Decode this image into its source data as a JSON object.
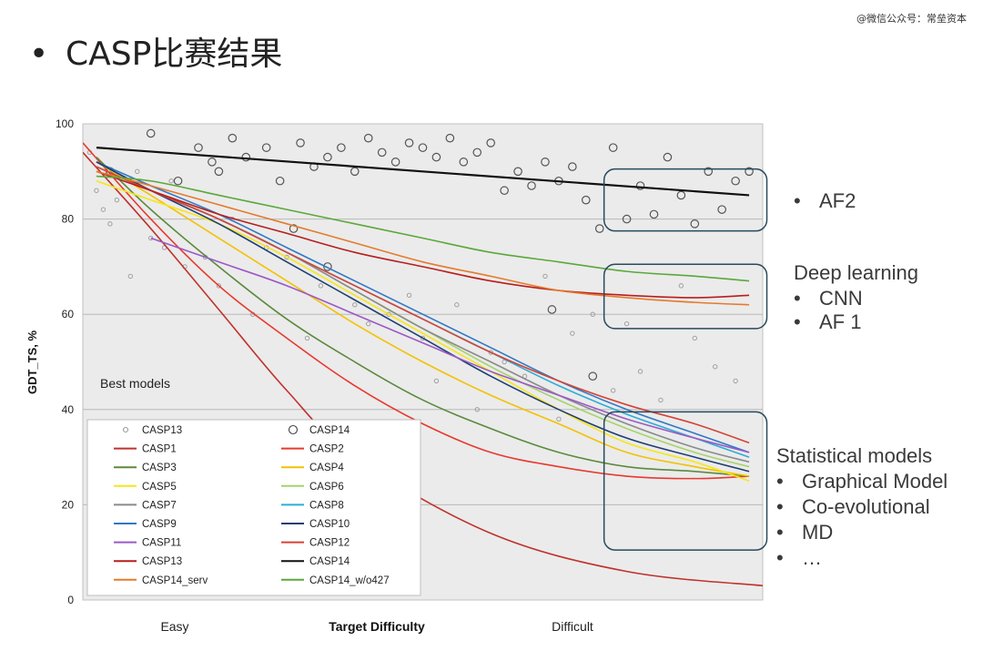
{
  "watermark": "@微信公众号：常垒资本",
  "slide_title": "CASP比赛结果",
  "annotations": {
    "af2_group": [
      "AF2"
    ],
    "deep_learning_heading": "Deep learning",
    "deep_learning_items": [
      "CNN",
      "AF 1"
    ],
    "statistical_heading": "Statistical models",
    "statistical_items": [
      "Graphical Model",
      "Co-evolutional",
      "MD",
      "…"
    ]
  },
  "chart_data": {
    "type": "line",
    "ylabel": "GDT_TS, %",
    "xlabel": "Target Difficulty",
    "x_tick_labels": [
      "Easy",
      "Difficult"
    ],
    "ylim": [
      0,
      100
    ],
    "xlim": [
      0,
      1
    ],
    "y_ticks": [
      0,
      20,
      40,
      60,
      80,
      100
    ],
    "grid": true,
    "inner_label": "Best models",
    "legend_position": "bottom-left",
    "scatter_series": [
      {
        "name": "CASP13",
        "marker": "small-circle",
        "points": [
          [
            0.01,
            94
          ],
          [
            0.02,
            86
          ],
          [
            0.03,
            82
          ],
          [
            0.04,
            79
          ],
          [
            0.05,
            84
          ],
          [
            0.07,
            68
          ],
          [
            0.08,
            90
          ],
          [
            0.1,
            76
          ],
          [
            0.12,
            74
          ],
          [
            0.13,
            88
          ],
          [
            0.15,
            70
          ],
          [
            0.18,
            72
          ],
          [
            0.2,
            66
          ],
          [
            0.22,
            80
          ],
          [
            0.25,
            60
          ],
          [
            0.27,
            74
          ],
          [
            0.3,
            72
          ],
          [
            0.33,
            55
          ],
          [
            0.35,
            66
          ],
          [
            0.4,
            62
          ],
          [
            0.42,
            58
          ],
          [
            0.45,
            60
          ],
          [
            0.48,
            64
          ],
          [
            0.5,
            55
          ],
          [
            0.52,
            46
          ],
          [
            0.55,
            62
          ],
          [
            0.58,
            40
          ],
          [
            0.6,
            52
          ],
          [
            0.62,
            50
          ],
          [
            0.65,
            47
          ],
          [
            0.68,
            68
          ],
          [
            0.7,
            38
          ],
          [
            0.72,
            56
          ],
          [
            0.75,
            60
          ],
          [
            0.78,
            44
          ],
          [
            0.8,
            58
          ],
          [
            0.82,
            48
          ],
          [
            0.85,
            42
          ],
          [
            0.88,
            66
          ],
          [
            0.9,
            55
          ],
          [
            0.93,
            49
          ],
          [
            0.96,
            46
          ]
        ]
      },
      {
        "name": "CASP14",
        "marker": "large-circle",
        "points": [
          [
            0.04,
            90
          ],
          [
            0.1,
            98
          ],
          [
            0.14,
            88
          ],
          [
            0.17,
            95
          ],
          [
            0.19,
            92
          ],
          [
            0.2,
            90
          ],
          [
            0.22,
            97
          ],
          [
            0.24,
            93
          ],
          [
            0.27,
            95
          ],
          [
            0.29,
            88
          ],
          [
            0.32,
            96
          ],
          [
            0.34,
            91
          ],
          [
            0.36,
            93
          ],
          [
            0.38,
            95
          ],
          [
            0.4,
            90
          ],
          [
            0.42,
            97
          ],
          [
            0.44,
            94
          ],
          [
            0.46,
            92
          ],
          [
            0.48,
            96
          ],
          [
            0.5,
            95
          ],
          [
            0.52,
            93
          ],
          [
            0.54,
            97
          ],
          [
            0.56,
            92
          ],
          [
            0.58,
            94
          ],
          [
            0.6,
            96
          ],
          [
            0.62,
            86
          ],
          [
            0.64,
            90
          ],
          [
            0.66,
            87
          ],
          [
            0.68,
            92
          ],
          [
            0.7,
            88
          ],
          [
            0.72,
            91
          ],
          [
            0.74,
            84
          ],
          [
            0.76,
            78
          ],
          [
            0.78,
            95
          ],
          [
            0.8,
            80
          ],
          [
            0.82,
            87
          ],
          [
            0.84,
            81
          ],
          [
            0.86,
            93
          ],
          [
            0.88,
            85
          ],
          [
            0.9,
            79
          ],
          [
            0.92,
            90
          ],
          [
            0.94,
            82
          ],
          [
            0.96,
            88
          ],
          [
            0.98,
            90
          ],
          [
            0.36,
            70
          ],
          [
            0.31,
            78
          ],
          [
            0.75,
            47
          ],
          [
            0.69,
            61
          ]
        ]
      }
    ],
    "series": [
      {
        "name": "CASP1",
        "color": "#c0312c",
        "points": [
          [
            0.0,
            94
          ],
          [
            0.1,
            78
          ],
          [
            0.2,
            61
          ],
          [
            0.3,
            44
          ],
          [
            0.4,
            30
          ],
          [
            0.6,
            14
          ],
          [
            0.8,
            6
          ],
          [
            1.0,
            3
          ]
        ],
        "visible_range": [
          0.0,
          0.44
        ]
      },
      {
        "name": "CASP2",
        "color": "#e8392f",
        "points": [
          [
            0.0,
            96
          ],
          [
            0.1,
            80
          ],
          [
            0.2,
            66
          ],
          [
            0.3,
            55
          ],
          [
            0.4,
            45
          ],
          [
            0.5,
            37
          ],
          [
            0.6,
            31
          ],
          [
            0.7,
            28
          ],
          [
            0.8,
            26
          ],
          [
            0.9,
            25.5
          ],
          [
            0.98,
            26
          ]
        ]
      },
      {
        "name": "CASP3",
        "color": "#5b8a3c",
        "points": [
          [
            0.02,
            93
          ],
          [
            0.1,
            82
          ],
          [
            0.2,
            70
          ],
          [
            0.3,
            59
          ],
          [
            0.4,
            50
          ],
          [
            0.5,
            42
          ],
          [
            0.6,
            36
          ],
          [
            0.7,
            31
          ],
          [
            0.8,
            28
          ],
          [
            0.9,
            27
          ],
          [
            0.98,
            26
          ]
        ]
      },
      {
        "name": "CASP4",
        "color": "#f2c200",
        "points": [
          [
            0.02,
            92
          ],
          [
            0.1,
            85
          ],
          [
            0.2,
            76
          ],
          [
            0.3,
            67
          ],
          [
            0.4,
            58
          ],
          [
            0.5,
            50
          ],
          [
            0.6,
            43
          ],
          [
            0.7,
            37
          ],
          [
            0.8,
            31
          ],
          [
            0.9,
            28
          ],
          [
            0.98,
            26
          ]
        ]
      },
      {
        "name": "CASP5",
        "color": "#f5e619",
        "points": [
          [
            0.02,
            88
          ],
          [
            0.1,
            84
          ],
          [
            0.2,
            79
          ],
          [
            0.3,
            72
          ],
          [
            0.4,
            64
          ],
          [
            0.5,
            56
          ],
          [
            0.6,
            48
          ],
          [
            0.7,
            40
          ],
          [
            0.8,
            33
          ],
          [
            0.9,
            29
          ],
          [
            0.98,
            25
          ]
        ]
      },
      {
        "name": "CASP6",
        "color": "#a5d46a",
        "points": [
          [
            0.02,
            90
          ],
          [
            0.1,
            86
          ],
          [
            0.2,
            80
          ],
          [
            0.3,
            73
          ],
          [
            0.4,
            65
          ],
          [
            0.5,
            57
          ],
          [
            0.6,
            49
          ],
          [
            0.7,
            42
          ],
          [
            0.8,
            36
          ],
          [
            0.9,
            31
          ],
          [
            0.98,
            28
          ]
        ]
      },
      {
        "name": "CASP7",
        "color": "#8a8a8a",
        "points": [
          [
            0.02,
            92
          ],
          [
            0.1,
            86
          ],
          [
            0.2,
            80
          ],
          [
            0.3,
            73
          ],
          [
            0.4,
            65
          ],
          [
            0.5,
            57
          ],
          [
            0.6,
            50
          ],
          [
            0.7,
            43
          ],
          [
            0.8,
            37
          ],
          [
            0.9,
            32
          ],
          [
            0.98,
            29
          ]
        ]
      },
      {
        "name": "CASP8",
        "color": "#2aaed6",
        "points": [
          [
            0.02,
            91
          ],
          [
            0.1,
            86
          ],
          [
            0.2,
            80
          ],
          [
            0.3,
            73
          ],
          [
            0.4,
            66
          ],
          [
            0.5,
            59
          ],
          [
            0.6,
            52
          ],
          [
            0.7,
            45
          ],
          [
            0.8,
            39
          ],
          [
            0.9,
            34
          ],
          [
            0.98,
            30
          ]
        ]
      },
      {
        "name": "CASP9",
        "color": "#2f78c4",
        "points": [
          [
            0.02,
            92
          ],
          [
            0.1,
            87
          ],
          [
            0.2,
            81
          ],
          [
            0.3,
            74
          ],
          [
            0.4,
            67
          ],
          [
            0.5,
            60
          ],
          [
            0.6,
            53
          ],
          [
            0.7,
            46
          ],
          [
            0.8,
            40
          ],
          [
            0.9,
            35
          ],
          [
            0.98,
            31
          ]
        ]
      },
      {
        "name": "CASP10",
        "color": "#1f3d73",
        "points": [
          [
            0.02,
            92
          ],
          [
            0.1,
            86
          ],
          [
            0.2,
            79
          ],
          [
            0.3,
            71
          ],
          [
            0.4,
            63
          ],
          [
            0.5,
            55
          ],
          [
            0.6,
            47
          ],
          [
            0.7,
            40
          ],
          [
            0.8,
            34
          ],
          [
            0.9,
            30
          ],
          [
            0.98,
            27
          ]
        ]
      },
      {
        "name": "CASP11",
        "color": "#9b59c6",
        "points": [
          [
            0.1,
            76
          ],
          [
            0.2,
            71
          ],
          [
            0.3,
            66
          ],
          [
            0.4,
            60
          ],
          [
            0.5,
            54
          ],
          [
            0.6,
            48
          ],
          [
            0.7,
            43
          ],
          [
            0.8,
            38
          ],
          [
            0.9,
            34
          ],
          [
            0.98,
            31
          ]
        ]
      },
      {
        "name": "CASP12",
        "color": "#d64236",
        "points": [
          [
            0.02,
            91
          ],
          [
            0.1,
            86
          ],
          [
            0.2,
            80
          ],
          [
            0.3,
            73
          ],
          [
            0.4,
            66
          ],
          [
            0.5,
            59
          ],
          [
            0.6,
            52
          ],
          [
            0.7,
            46
          ],
          [
            0.8,
            41
          ],
          [
            0.9,
            37
          ],
          [
            0.98,
            33
          ]
        ]
      },
      {
        "name": "CASP13",
        "color": "#b81d1d",
        "points": [
          [
            0.02,
            90
          ],
          [
            0.1,
            86
          ],
          [
            0.2,
            81
          ],
          [
            0.3,
            77
          ],
          [
            0.4,
            73
          ],
          [
            0.5,
            70
          ],
          [
            0.6,
            67
          ],
          [
            0.7,
            65
          ],
          [
            0.8,
            64
          ],
          [
            0.9,
            63.5
          ],
          [
            0.98,
            64
          ]
        ]
      },
      {
        "name": "CASP14",
        "color": "#111111",
        "points": [
          [
            0.02,
            95
          ],
          [
            0.98,
            85
          ]
        ]
      },
      {
        "name": "CASP14_serv",
        "color": "#e67a2c",
        "points": [
          [
            0.02,
            90
          ],
          [
            0.1,
            87
          ],
          [
            0.2,
            83
          ],
          [
            0.3,
            79
          ],
          [
            0.4,
            75
          ],
          [
            0.5,
            71
          ],
          [
            0.6,
            68
          ],
          [
            0.7,
            65
          ],
          [
            0.8,
            63.5
          ],
          [
            0.9,
            62.5
          ],
          [
            0.98,
            62
          ]
        ]
      },
      {
        "name": "CASP14_w/o427",
        "color": "#5aa83a",
        "points": [
          [
            0.02,
            89
          ],
          [
            0.1,
            88
          ],
          [
            0.2,
            85
          ],
          [
            0.3,
            82
          ],
          [
            0.4,
            79
          ],
          [
            0.5,
            76
          ],
          [
            0.6,
            73
          ],
          [
            0.7,
            71
          ],
          [
            0.8,
            69
          ],
          [
            0.9,
            68
          ],
          [
            0.98,
            67
          ]
        ]
      }
    ],
    "highlight_boxes": [
      {
        "label": "AF2",
        "x_range": [
          0.78,
          0.99
        ],
        "y_range": [
          77.5,
          90.5
        ]
      },
      {
        "label": "Deep learning",
        "x_range": [
          0.78,
          0.99
        ],
        "y_range": [
          57,
          70.5
        ]
      },
      {
        "label": "Statistical models",
        "x_range": [
          0.78,
          0.99
        ],
        "y_range": [
          10.5,
          39.5
        ]
      }
    ]
  }
}
